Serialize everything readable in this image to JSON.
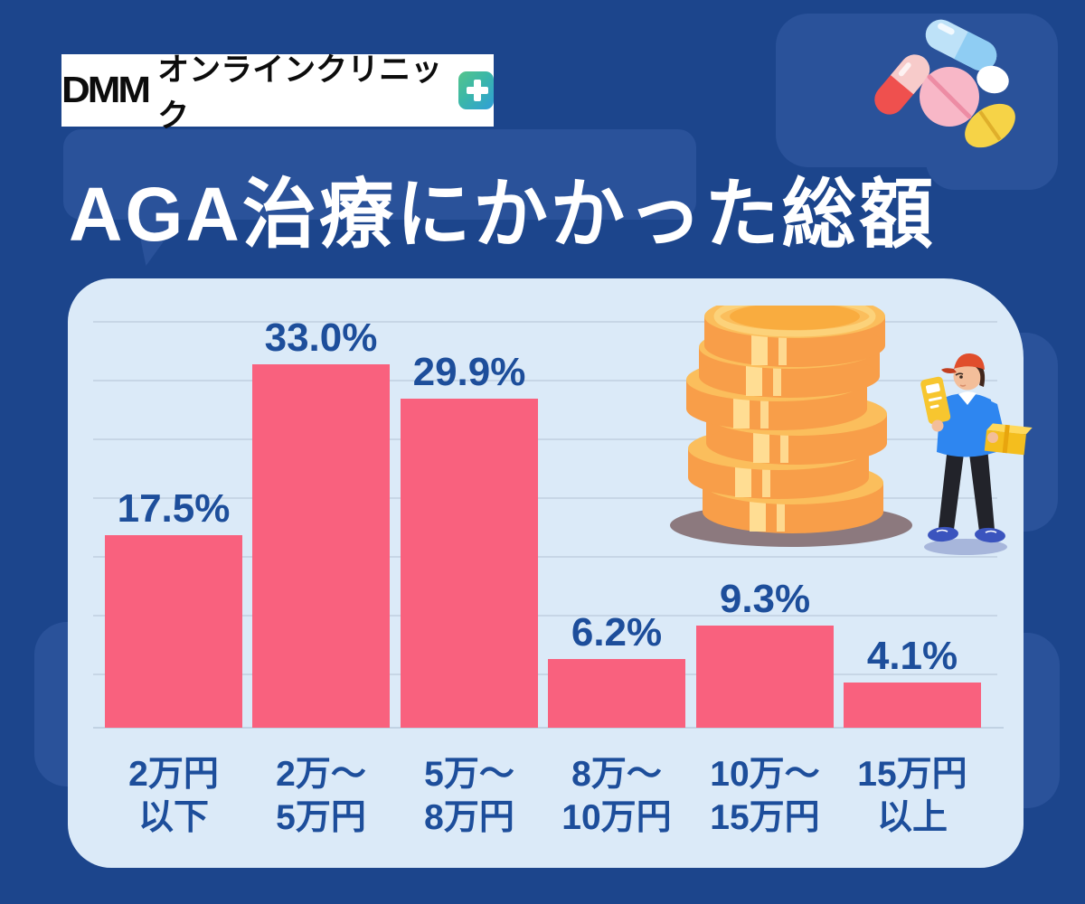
{
  "brand": {
    "dmm": "DMM",
    "clinic": "オンラインクリニック",
    "icon": "clinic-plus-icon",
    "logo_bg": "#FFFFFF",
    "logo_text_color": "#0C0C0C",
    "icon_colors": [
      "#55C58B",
      "#2F9ED9"
    ]
  },
  "title": "AGA治療にかかった総額",
  "chart_data": {
    "type": "bar",
    "title": "AGA治療にかかった総額",
    "categories": [
      "2万円以下",
      "2万〜5万円",
      "5万〜8万円",
      "8万〜10万円",
      "10万〜15万円",
      "15万円以上"
    ],
    "category_lines": [
      [
        "2万円",
        "以下"
      ],
      [
        "2万〜",
        "5万円"
      ],
      [
        "5万〜",
        "8万円"
      ],
      [
        "8万〜",
        "10万円"
      ],
      [
        "10万〜",
        "15万円"
      ],
      [
        "15万円",
        "以上"
      ]
    ],
    "values": [
      17.5,
      33.0,
      29.9,
      6.2,
      9.3,
      4.1
    ],
    "value_labels": [
      "17.5%",
      "33.0%",
      "29.9%",
      "6.2%",
      "9.3%",
      "4.1%"
    ],
    "unit": "%",
    "ylim": [
      0,
      37
    ],
    "grid": true,
    "gridline_count": 7,
    "legend": null,
    "bar_color": "#F9617E",
    "label_color": "#1D4E9B",
    "panel_color": "#DBEAF8",
    "gridline_color": "#C7D6E6"
  },
  "colors": {
    "background": "#1C458C",
    "speech_bubble": "#2A529A",
    "panel": "#DBEAF8",
    "bar": "#F9617E",
    "text_blue": "#1D4E9B",
    "title_text": "#FFFFFF",
    "coin_side": "#F89E49",
    "coin_top": "#FBBE5C",
    "coin_shadow": "#8C797E",
    "person_shirt": "#2E86F0",
    "person_cap": "#E04E2C"
  },
  "illustrations": {
    "pills": "pills-illustration",
    "coins": "coin-stack-illustration",
    "person": "man-checking-bill-illustration"
  }
}
